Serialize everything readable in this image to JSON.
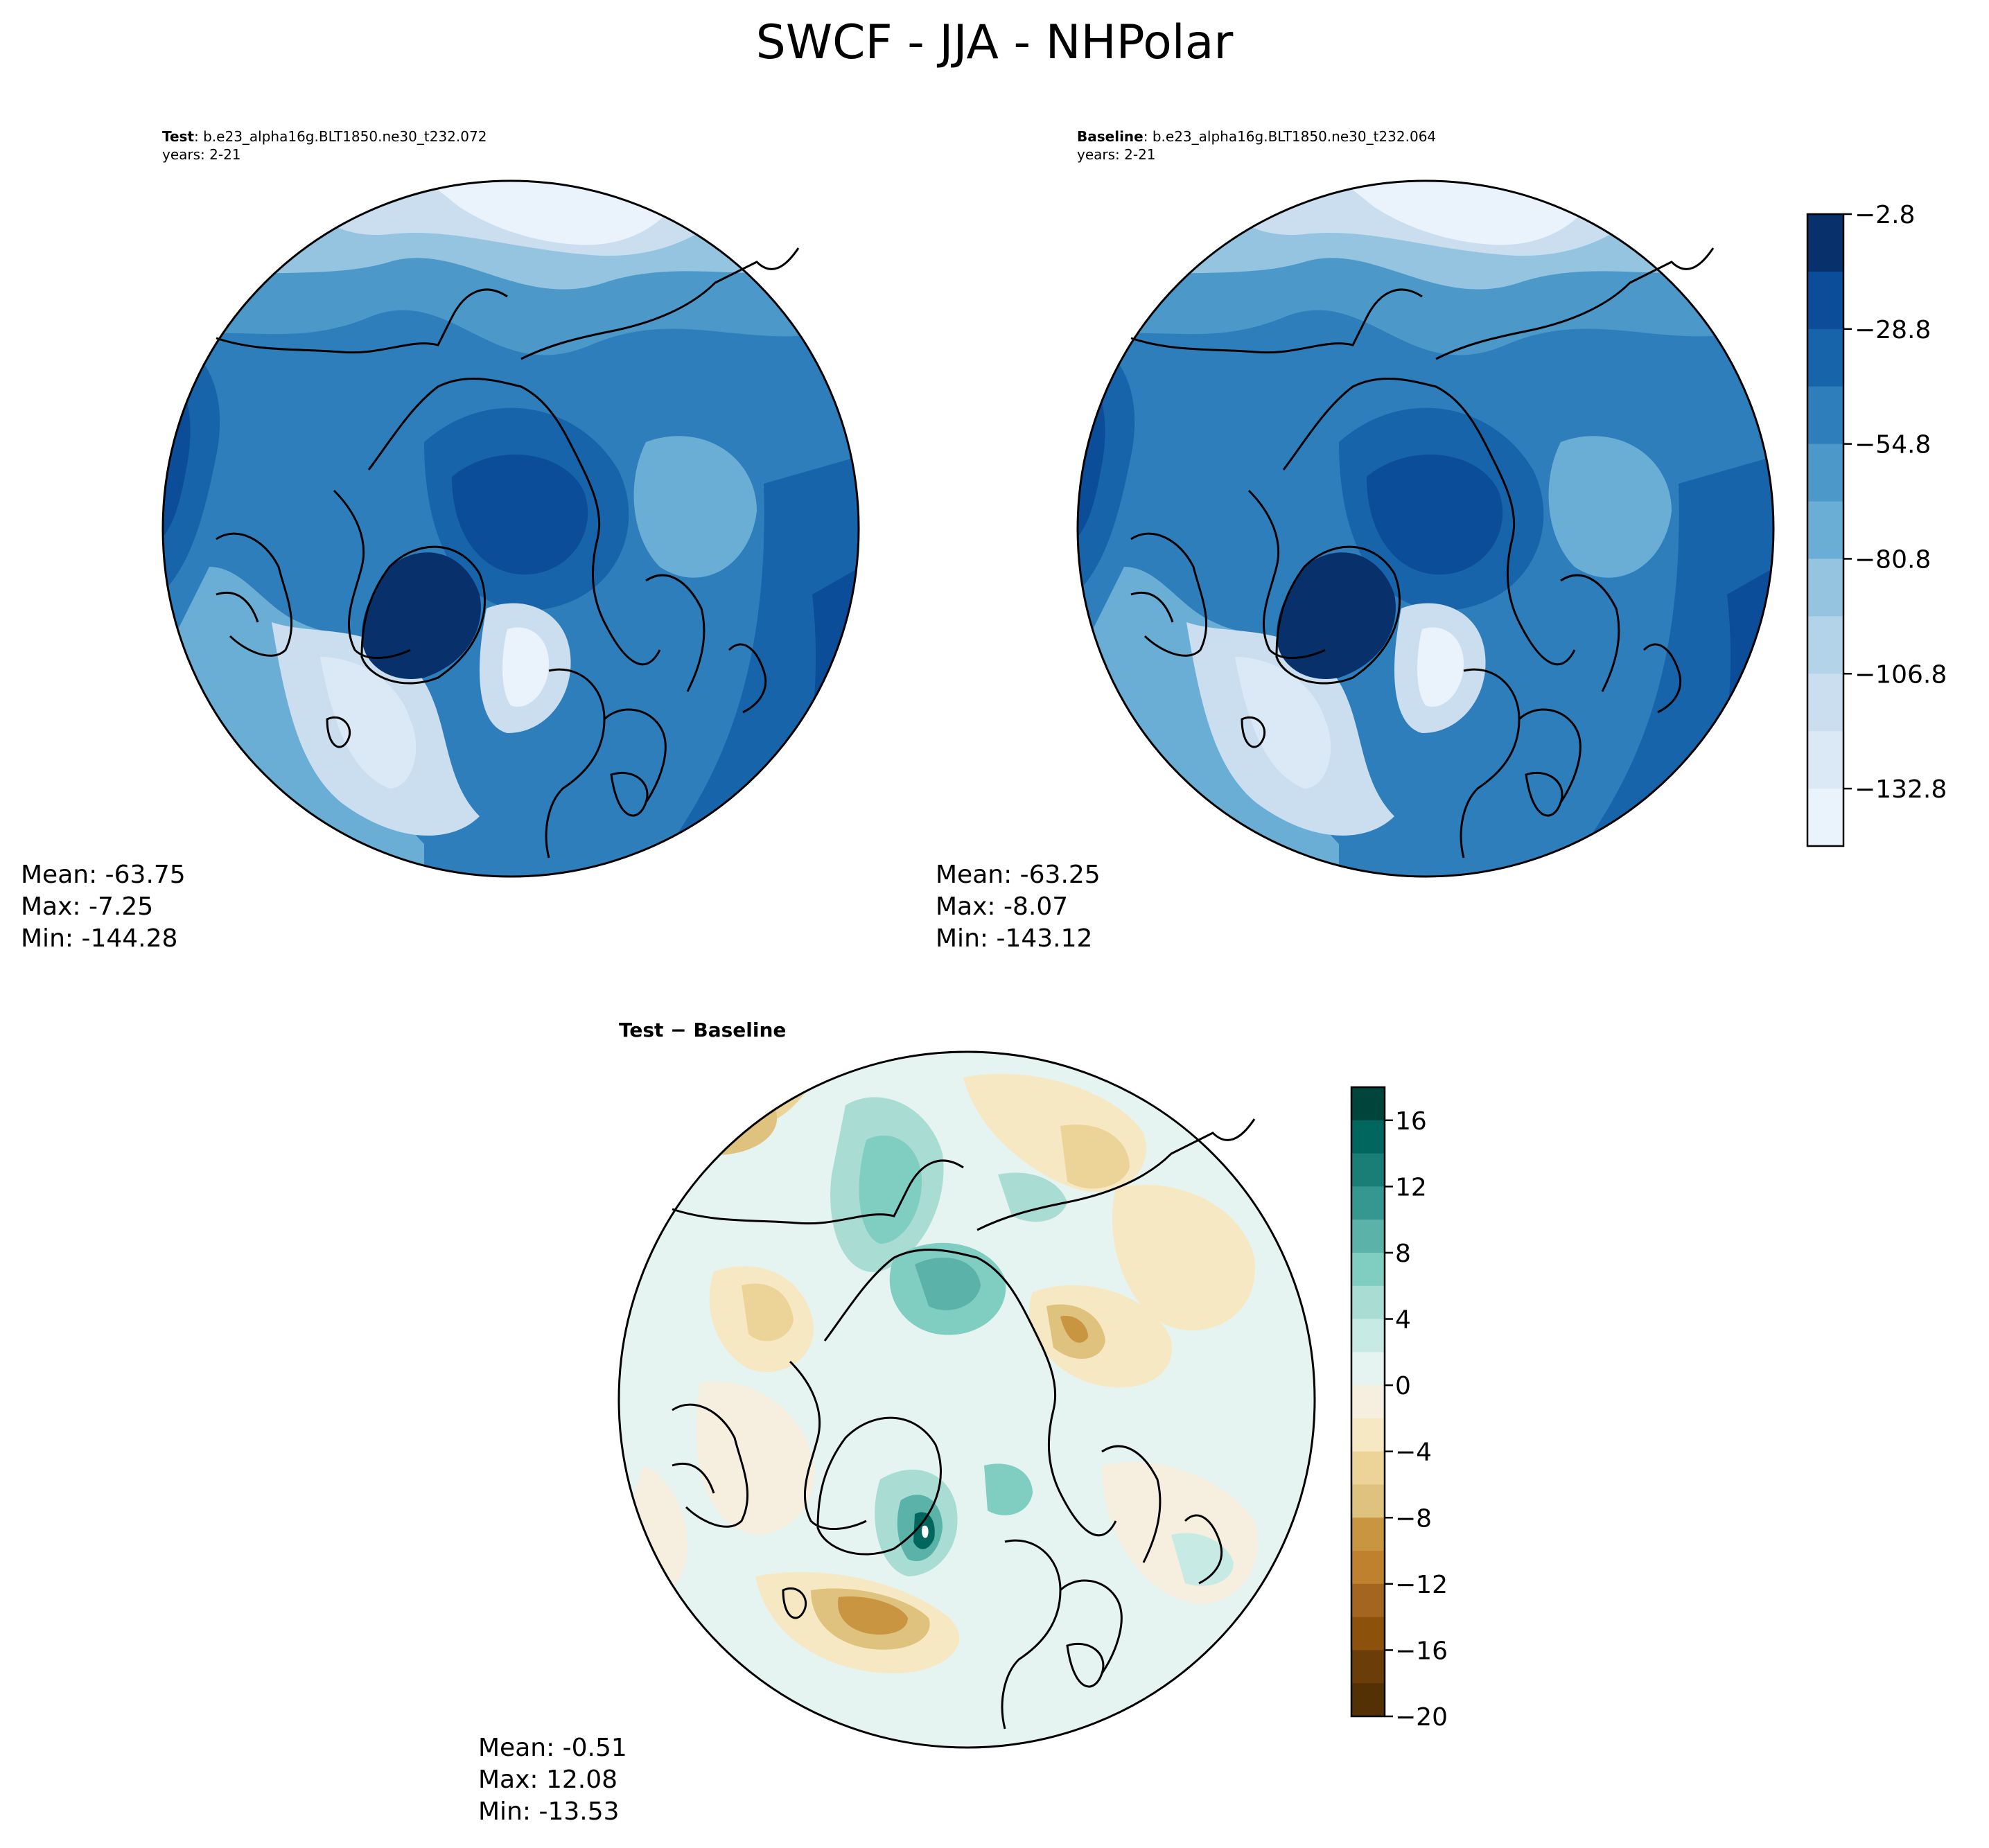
{
  "figure": {
    "title": "SWCF - JJA - NHPolar"
  },
  "panels": {
    "test": {
      "label_bold": "Test",
      "label_rest": ": b.e23_alpha16g.BLT1850.ne30_t232.072",
      "years": "years: 2-21",
      "mean": "Mean: -63.75",
      "max": "Max: -7.25",
      "min": "Min: -144.28"
    },
    "baseline": {
      "label_bold": "Baseline",
      "label_rest": ": b.e23_alpha16g.BLT1850.ne30_t232.064",
      "years": "years: 2-21",
      "mean": "Mean: -63.25",
      "max": "Max: -8.07",
      "min": "Min: -143.12"
    },
    "diff": {
      "title": "Test − Baseline",
      "mean": "Mean: -0.51",
      "max": "Max: 12.08",
      "min": "Min: -13.53"
    }
  },
  "colorbars": {
    "main": {
      "ticks": [
        "−2.8",
        "−28.8",
        "−54.8",
        "−80.8",
        "−106.8",
        "−132.8"
      ],
      "colors": [
        "#08306b",
        "#0b4d98",
        "#1764ab",
        "#2f7ebc",
        "#4b98c9",
        "#6aaed6",
        "#94c4df",
        "#b3d3e8",
        "#cadef0",
        "#dbe9f6",
        "#eaf2fb"
      ]
    },
    "diff": {
      "ticks": [
        "16",
        "12",
        "8",
        "4",
        "0",
        "−4",
        "−8",
        "−12",
        "−16",
        "−20"
      ],
      "colors": [
        "#00443c",
        "#01665e",
        "#1b7e76",
        "#35978f",
        "#5ab2a8",
        "#80cdc1",
        "#a9ddd4",
        "#c7eae5",
        "#e6f4f1",
        "#f6efe0",
        "#f6e8c3",
        "#ecd498",
        "#dfc27d",
        "#c99540",
        "#bf812d",
        "#a46520",
        "#8c510a",
        "#6b3d08",
        "#543005"
      ]
    }
  }
}
